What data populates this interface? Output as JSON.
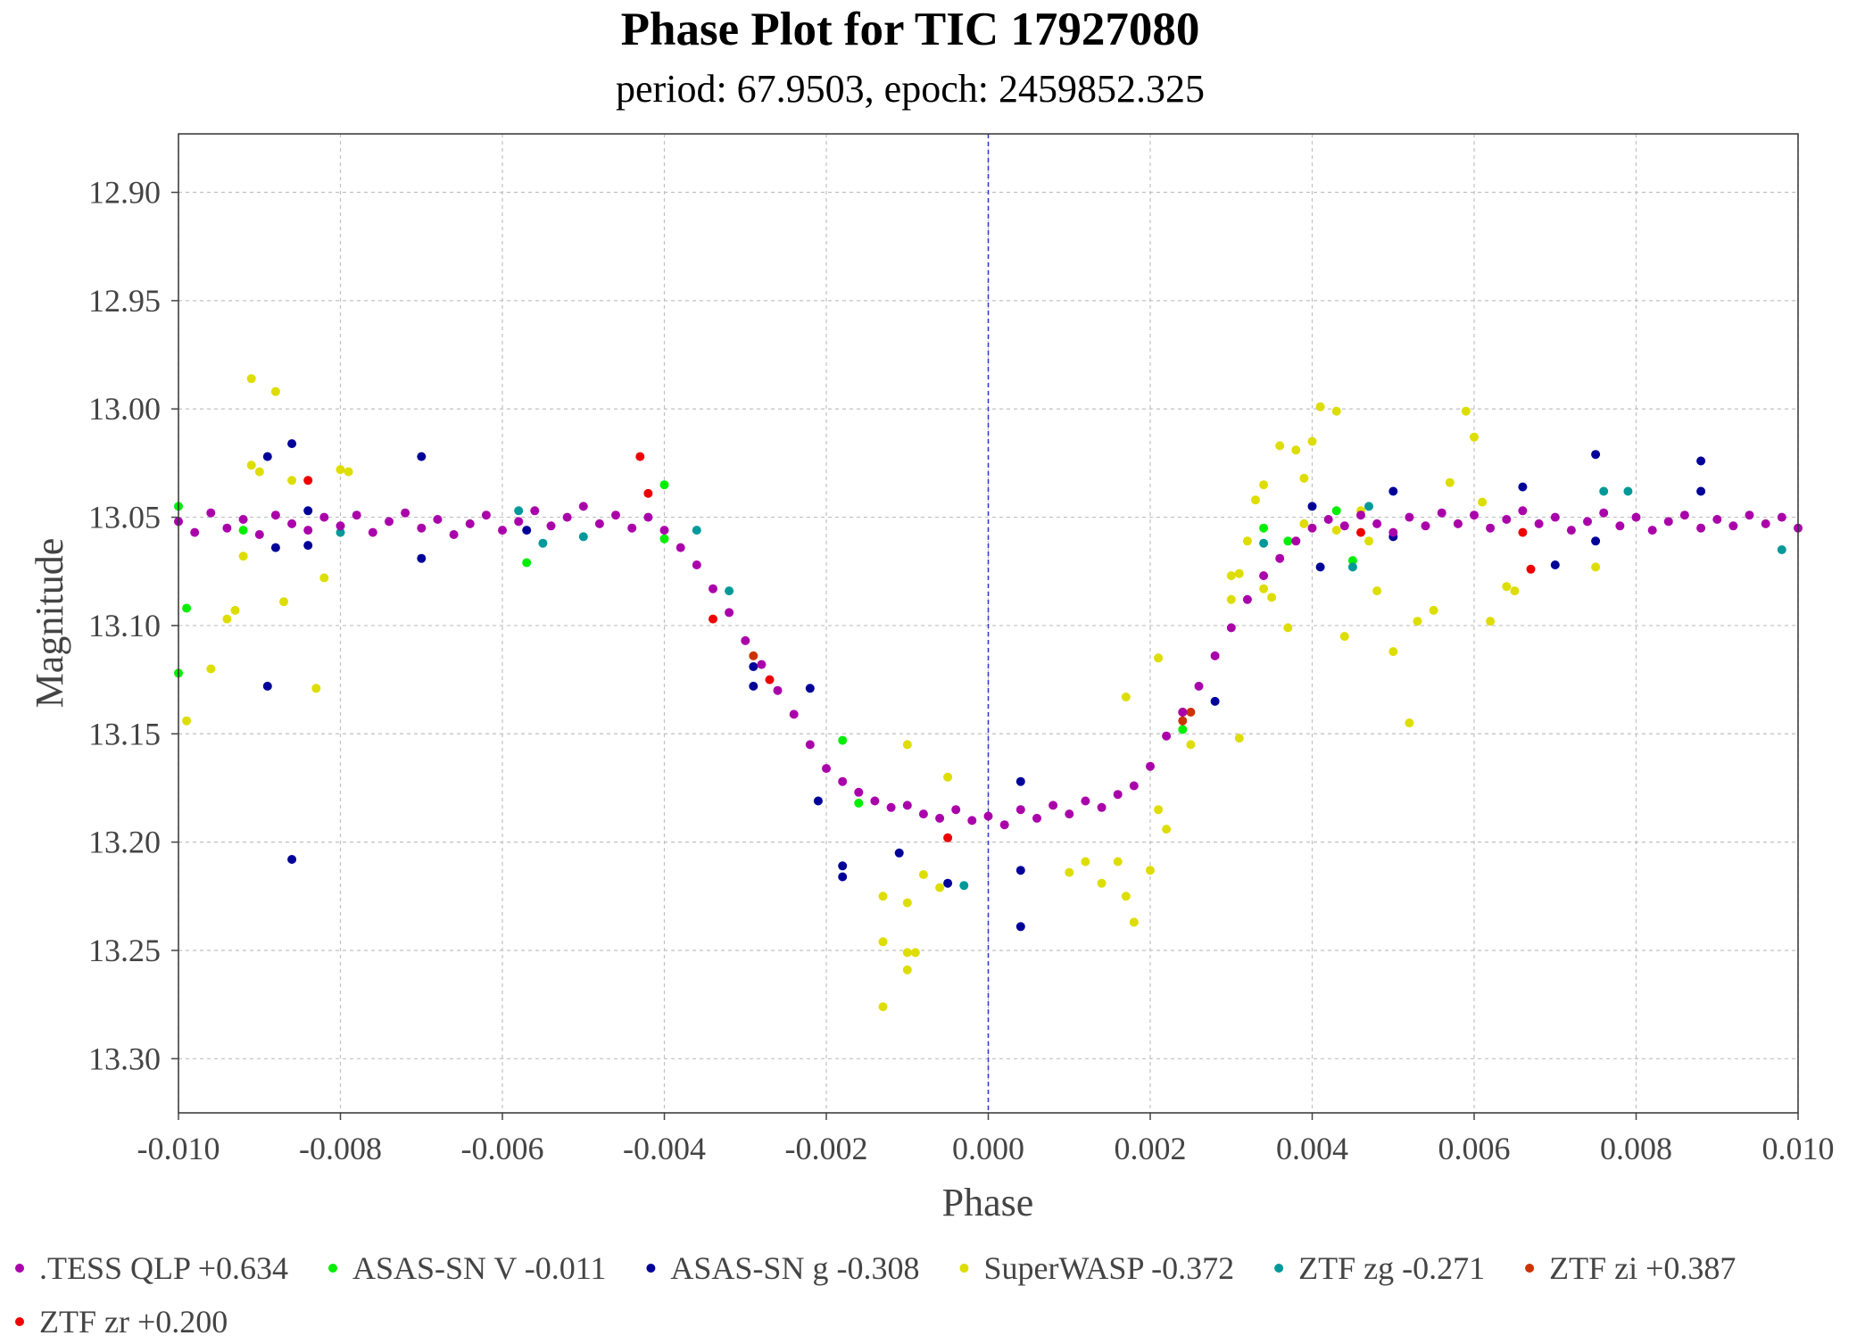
{
  "chart_data": {
    "type": "scatter",
    "title": "Phase Plot for TIC 17927080",
    "subtitle": "period: 67.9503, epoch: 2459852.325",
    "xlabel": "Phase",
    "ylabel": "Magnitude",
    "xlim": [
      -0.01,
      0.01
    ],
    "ylim": [
      13.325,
      12.873
    ],
    "y_inverted": true,
    "grid": true,
    "epoch_marker_x": 0.0,
    "xticks": [
      -0.01,
      -0.008,
      -0.006,
      -0.004,
      -0.002,
      0.0,
      0.002,
      0.004,
      0.006,
      0.008,
      0.01
    ],
    "xtick_labels": [
      "-0.010",
      "-0.008",
      "-0.006",
      "-0.004",
      "-0.002",
      "0.000",
      "0.002",
      "0.004",
      "0.006",
      "0.008",
      "0.010"
    ],
    "yticks": [
      12.9,
      12.95,
      13.0,
      13.05,
      13.1,
      13.15,
      13.2,
      13.25,
      13.3
    ],
    "ytick_labels": [
      "12.90",
      "12.95",
      "13.00",
      "13.05",
      "13.10",
      "13.15",
      "13.20",
      "13.25",
      "13.30"
    ],
    "legend_position": "bottom",
    "series": [
      {
        "name": ".TESS QLP +0.634",
        "color": "#aa00aa",
        "model": {
          "baseline": 13.052,
          "depth": 0.137,
          "ingress_start": -0.0041,
          "ingress_end": -0.0018,
          "egress_start": 0.0016,
          "egress_end": 0.0042
        },
        "points": [
          [
            -0.01,
            13.052
          ],
          [
            -0.0098,
            13.057
          ],
          [
            -0.0096,
            13.048
          ],
          [
            -0.0094,
            13.055
          ],
          [
            -0.0092,
            13.051
          ],
          [
            -0.009,
            13.058
          ],
          [
            -0.0088,
            13.049
          ],
          [
            -0.0086,
            13.053
          ],
          [
            -0.0084,
            13.056
          ],
          [
            -0.0082,
            13.05
          ],
          [
            -0.008,
            13.054
          ],
          [
            -0.0078,
            13.049
          ],
          [
            -0.0076,
            13.057
          ],
          [
            -0.0074,
            13.052
          ],
          [
            -0.0072,
            13.048
          ],
          [
            -0.007,
            13.055
          ],
          [
            -0.0068,
            13.051
          ],
          [
            -0.0066,
            13.058
          ],
          [
            -0.0064,
            13.053
          ],
          [
            -0.0062,
            13.049
          ],
          [
            -0.006,
            13.056
          ],
          [
            -0.0058,
            13.052
          ],
          [
            -0.0056,
            13.047
          ],
          [
            -0.0054,
            13.054
          ],
          [
            -0.0052,
            13.05
          ],
          [
            -0.005,
            13.045
          ],
          [
            -0.0048,
            13.053
          ],
          [
            -0.0046,
            13.049
          ],
          [
            -0.0044,
            13.055
          ],
          [
            -0.0042,
            13.05
          ],
          [
            -0.004,
            13.056
          ],
          [
            -0.0038,
            13.064
          ],
          [
            -0.0036,
            13.072
          ],
          [
            -0.0034,
            13.083
          ],
          [
            -0.0032,
            13.094
          ],
          [
            -0.003,
            13.107
          ],
          [
            -0.0028,
            13.118
          ],
          [
            -0.0026,
            13.13
          ],
          [
            -0.0024,
            13.141
          ],
          [
            -0.0022,
            13.155
          ],
          [
            -0.002,
            13.166
          ],
          [
            -0.0018,
            13.172
          ],
          [
            -0.0016,
            13.177
          ],
          [
            -0.0014,
            13.181
          ],
          [
            -0.0012,
            13.184
          ],
          [
            -0.001,
            13.183
          ],
          [
            -0.0008,
            13.187
          ],
          [
            -0.0006,
            13.189
          ],
          [
            -0.0004,
            13.185
          ],
          [
            -0.0002,
            13.19
          ],
          [
            0.0,
            13.188
          ],
          [
            0.0002,
            13.192
          ],
          [
            0.0004,
            13.185
          ],
          [
            0.0006,
            13.189
          ],
          [
            0.0008,
            13.183
          ],
          [
            0.001,
            13.187
          ],
          [
            0.0012,
            13.181
          ],
          [
            0.0014,
            13.184
          ],
          [
            0.0016,
            13.178
          ],
          [
            0.0018,
            13.174
          ],
          [
            0.002,
            13.165
          ],
          [
            0.0022,
            13.151
          ],
          [
            0.0024,
            13.14
          ],
          [
            0.0026,
            13.128
          ],
          [
            0.0028,
            13.114
          ],
          [
            0.003,
            13.101
          ],
          [
            0.0032,
            13.088
          ],
          [
            0.0034,
            13.077
          ],
          [
            0.0036,
            13.069
          ],
          [
            0.0038,
            13.061
          ],
          [
            0.004,
            13.055
          ],
          [
            0.0042,
            13.051
          ],
          [
            0.0044,
            13.054
          ],
          [
            0.0046,
            13.049
          ],
          [
            0.0048,
            13.053
          ],
          [
            0.005,
            13.057
          ],
          [
            0.0052,
            13.05
          ],
          [
            0.0054,
            13.054
          ],
          [
            0.0056,
            13.048
          ],
          [
            0.0058,
            13.053
          ],
          [
            0.006,
            13.049
          ],
          [
            0.0062,
            13.055
          ],
          [
            0.0064,
            13.051
          ],
          [
            0.0066,
            13.047
          ],
          [
            0.0068,
            13.053
          ],
          [
            0.007,
            13.05
          ],
          [
            0.0072,
            13.056
          ],
          [
            0.0074,
            13.052
          ],
          [
            0.0076,
            13.048
          ],
          [
            0.0078,
            13.054
          ],
          [
            0.008,
            13.05
          ],
          [
            0.0082,
            13.056
          ],
          [
            0.0084,
            13.052
          ],
          [
            0.0086,
            13.049
          ],
          [
            0.0088,
            13.055
          ],
          [
            0.009,
            13.051
          ],
          [
            0.0092,
            13.054
          ],
          [
            0.0094,
            13.049
          ],
          [
            0.0096,
            13.053
          ],
          [
            0.0098,
            13.05
          ],
          [
            0.01,
            13.055
          ]
        ]
      },
      {
        "name": "ASAS-SN V -0.011",
        "color": "#00ee00",
        "points": [
          [
            -0.01,
            13.045
          ],
          [
            -0.0099,
            13.092
          ],
          [
            -0.01,
            13.122
          ],
          [
            -0.0057,
            13.071
          ],
          [
            -0.004,
            13.035
          ],
          [
            -0.004,
            13.06
          ],
          [
            -0.0018,
            13.153
          ],
          [
            -0.0016,
            13.182
          ],
          [
            0.0034,
            13.055
          ],
          [
            0.0045,
            13.07
          ],
          [
            0.0043,
            13.047
          ],
          [
            0.0037,
            13.061
          ],
          [
            -0.0092,
            13.056
          ],
          [
            0.0024,
            13.148
          ]
        ]
      },
      {
        "name": "ASAS-SN g -0.308",
        "color": "#000099",
        "points": [
          [
            -0.0089,
            13.022
          ],
          [
            -0.0086,
            13.016
          ],
          [
            -0.0089,
            13.128
          ],
          [
            -0.0086,
            13.208
          ],
          [
            -0.0084,
            13.063
          ],
          [
            -0.007,
            13.022
          ],
          [
            -0.007,
            13.069
          ],
          [
            -0.0057,
            13.056
          ],
          [
            -0.0029,
            13.119
          ],
          [
            -0.0029,
            13.128
          ],
          [
            -0.0022,
            13.129
          ],
          [
            -0.0021,
            13.181
          ],
          [
            -0.0018,
            13.211
          ],
          [
            -0.0018,
            13.216
          ],
          [
            -0.0011,
            13.205
          ],
          [
            -0.0005,
            13.219
          ],
          [
            0.0004,
            13.213
          ],
          [
            0.0004,
            13.239
          ],
          [
            0.0004,
            13.172
          ],
          [
            0.0028,
            13.135
          ],
          [
            0.004,
            13.045
          ],
          [
            0.0041,
            13.073
          ],
          [
            0.005,
            13.038
          ],
          [
            0.005,
            13.059
          ],
          [
            0.007,
            13.072
          ],
          [
            0.0075,
            13.021
          ],
          [
            0.0075,
            13.061
          ],
          [
            0.0088,
            13.024
          ],
          [
            0.0088,
            13.038
          ],
          [
            0.0066,
            13.036
          ],
          [
            -0.0088,
            13.064
          ],
          [
            -0.0084,
            13.047
          ]
        ]
      },
      {
        "name": "SuperWASP -0.372",
        "color": "#dddd00",
        "points": [
          [
            -0.0091,
            12.986
          ],
          [
            -0.0088,
            12.992
          ],
          [
            -0.0091,
            13.026
          ],
          [
            -0.009,
            13.029
          ],
          [
            -0.0086,
            13.033
          ],
          [
            -0.0087,
            13.089
          ],
          [
            -0.0083,
            13.129
          ],
          [
            -0.0082,
            13.078
          ],
          [
            -0.008,
            13.028
          ],
          [
            -0.0079,
            13.029
          ],
          [
            -0.0096,
            13.12
          ],
          [
            -0.0099,
            13.144
          ],
          [
            -0.0094,
            13.097
          ],
          [
            -0.0093,
            13.093
          ],
          [
            -0.0092,
            13.068
          ],
          [
            -0.0013,
            13.225
          ],
          [
            -0.0013,
            13.246
          ],
          [
            -0.0013,
            13.276
          ],
          [
            -0.001,
            13.251
          ],
          [
            -0.001,
            13.259
          ],
          [
            -0.0009,
            13.251
          ],
          [
            -0.001,
            13.228
          ],
          [
            -0.0008,
            13.215
          ],
          [
            -0.0006,
            13.221
          ],
          [
            -0.0005,
            13.17
          ],
          [
            -0.001,
            13.155
          ],
          [
            0.001,
            13.214
          ],
          [
            0.0012,
            13.209
          ],
          [
            0.0014,
            13.219
          ],
          [
            0.0016,
            13.209
          ],
          [
            0.0017,
            13.133
          ],
          [
            0.0017,
            13.225
          ],
          [
            0.0018,
            13.237
          ],
          [
            0.002,
            13.213
          ],
          [
            0.0021,
            13.185
          ],
          [
            0.0021,
            13.115
          ],
          [
            0.0022,
            13.194
          ],
          [
            0.0025,
            13.155
          ],
          [
            0.003,
            13.077
          ],
          [
            0.003,
            13.088
          ],
          [
            0.0031,
            13.076
          ],
          [
            0.0031,
            13.152
          ],
          [
            0.0032,
            13.061
          ],
          [
            0.0033,
            13.042
          ],
          [
            0.0034,
            13.083
          ],
          [
            0.0035,
            13.087
          ],
          [
            0.0036,
            13.017
          ],
          [
            0.0037,
            13.101
          ],
          [
            0.0038,
            13.019
          ],
          [
            0.0039,
            13.053
          ],
          [
            0.004,
            13.015
          ],
          [
            0.0041,
            12.999
          ],
          [
            0.0043,
            13.001
          ],
          [
            0.0044,
            13.105
          ],
          [
            0.0046,
            13.047
          ],
          [
            0.0047,
            13.061
          ],
          [
            0.0048,
            13.084
          ],
          [
            0.005,
            13.112
          ],
          [
            0.0052,
            13.145
          ],
          [
            0.0053,
            13.098
          ],
          [
            0.0055,
            13.093
          ],
          [
            0.0057,
            13.034
          ],
          [
            0.0058,
            13.053
          ],
          [
            0.0059,
            13.001
          ],
          [
            0.006,
            13.013
          ],
          [
            0.0061,
            13.043
          ],
          [
            0.0062,
            13.098
          ],
          [
            0.0064,
            13.082
          ],
          [
            0.0065,
            13.084
          ],
          [
            0.0075,
            13.073
          ],
          [
            0.0039,
            13.032
          ],
          [
            0.0034,
            13.035
          ],
          [
            0.0043,
            13.056
          ]
        ]
      },
      {
        "name": "ZTF zg -0.271",
        "color": "#009999",
        "points": [
          [
            -0.008,
            13.057
          ],
          [
            -0.0058,
            13.047
          ],
          [
            -0.0055,
            13.062
          ],
          [
            -0.005,
            13.059
          ],
          [
            -0.0036,
            13.056
          ],
          [
            -0.0032,
            13.084
          ],
          [
            -0.0003,
            13.22
          ],
          [
            0.0034,
            13.062
          ],
          [
            0.0045,
            13.073
          ],
          [
            0.0047,
            13.045
          ],
          [
            0.0076,
            13.038
          ],
          [
            0.0079,
            13.038
          ],
          [
            0.0098,
            13.065
          ]
        ]
      },
      {
        "name": "ZTF zi +0.387",
        "color": "#cc3300",
        "points": [
          [
            0.0025,
            13.14
          ],
          [
            0.0024,
            13.144
          ],
          [
            -0.0029,
            13.114
          ]
        ]
      },
      {
        "name": "ZTF zr +0.200",
        "color": "#ee0000",
        "points": [
          [
            -0.0084,
            13.033
          ],
          [
            -0.0043,
            13.022
          ],
          [
            -0.0042,
            13.039
          ],
          [
            -0.0034,
            13.097
          ],
          [
            -0.0027,
            13.125
          ],
          [
            -0.0005,
            13.198
          ],
          [
            0.0046,
            13.057
          ],
          [
            0.0067,
            13.074
          ],
          [
            0.0066,
            13.057
          ],
          [
            0.0024,
            13.14
          ]
        ]
      }
    ]
  }
}
